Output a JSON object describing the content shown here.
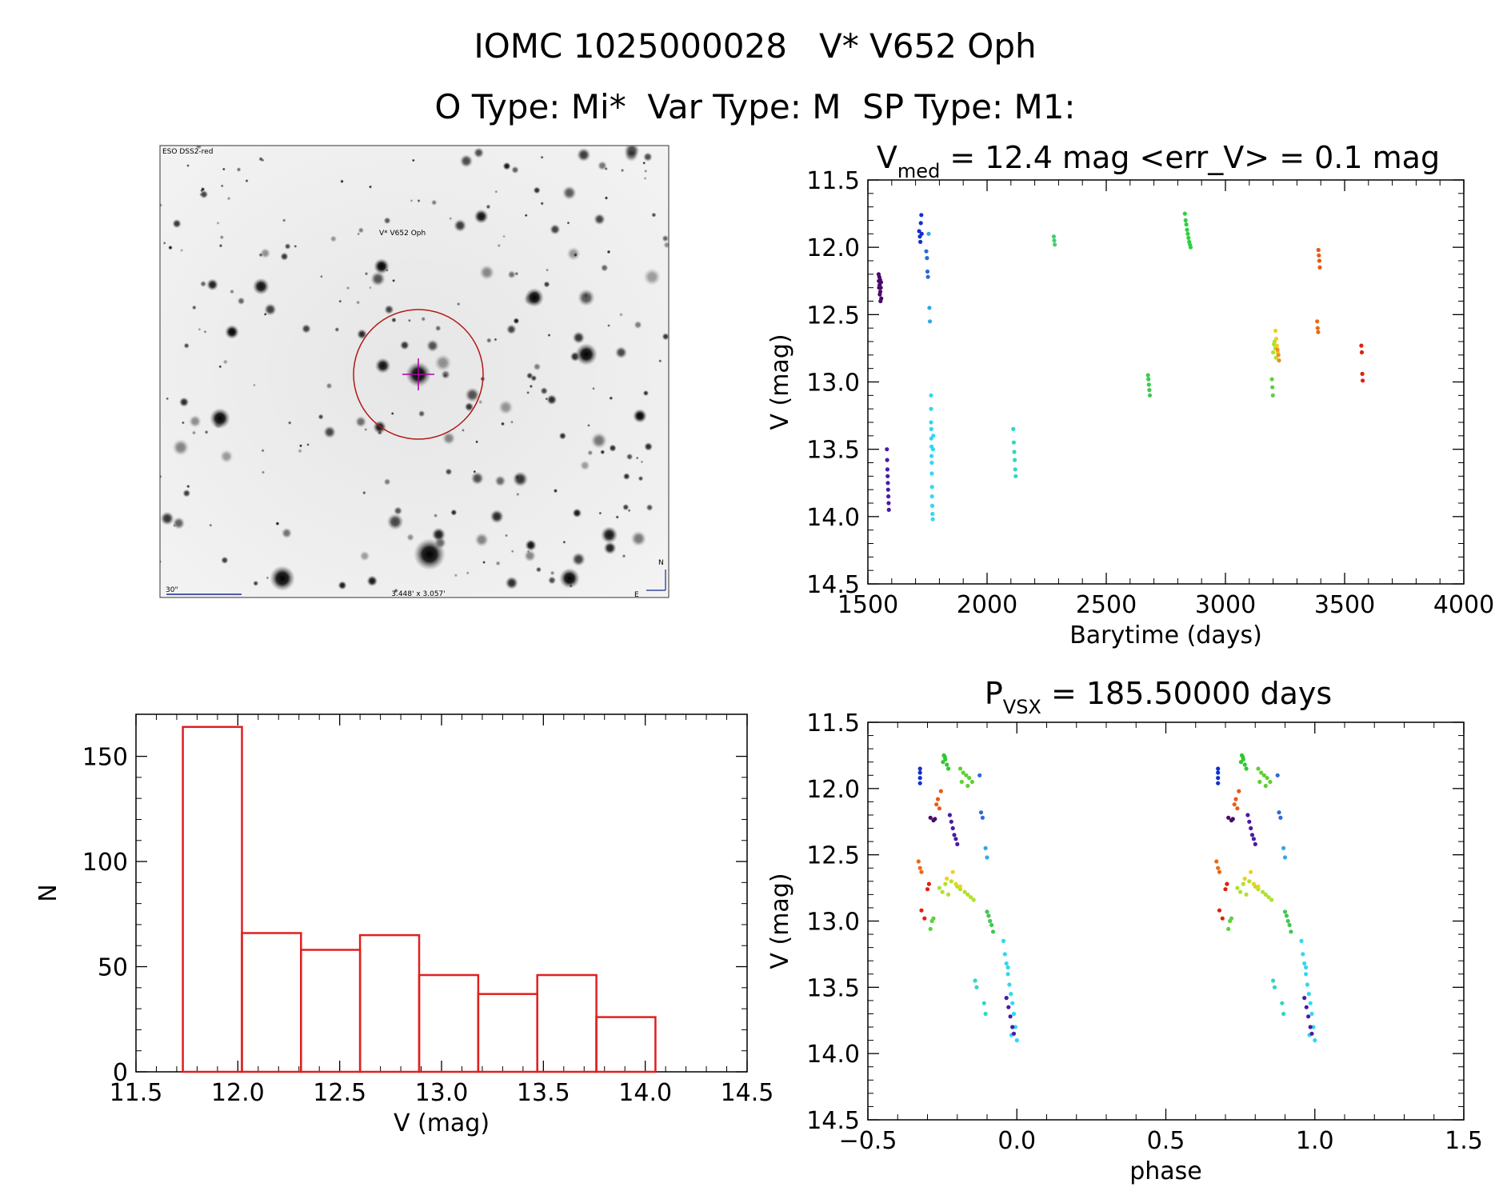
{
  "header": {
    "title_line1": "IOMC 1025000028   V* V652 Oph",
    "title_line2": "O Type: Mi*  Var Type: M  SP Type: M1:"
  },
  "finder": {
    "survey_label": "ESO DSS2-red",
    "target_label": "V* V652 Oph",
    "scale_label": "30\"",
    "fov_label": "3.448' x 3.057'",
    "north_label": "N",
    "east_label": "E",
    "colors": {
      "circle": "#b01818",
      "crosshair": "#b000b0",
      "label": "#1a2a8a",
      "target_label": "#a01010"
    }
  },
  "chart_data": [
    {
      "type": "scatter",
      "id": "lightcurve",
      "title_main": "V",
      "title_sub": "med",
      "title_rest": " = 12.4 mag <err_V> = 0.1 mag",
      "xlabel": "Barytime (days)",
      "ylabel": "V (mag)",
      "xlim": [
        1500,
        4000
      ],
      "ylim": [
        14.5,
        11.5
      ],
      "y_inverted": true,
      "xticks": [
        "1500",
        "2000",
        "2500",
        "3000",
        "3500",
        "4000"
      ],
      "yticks": [
        "11.5",
        "12.0",
        "12.5",
        "13.0",
        "13.5",
        "14.0",
        "14.5"
      ],
      "groups": [
        {
          "color": "#4a0a6a",
          "x": [
            1545,
            1546,
            1547,
            1548,
            1549,
            1550,
            1551,
            1552,
            1553,
            1554,
            1555,
            1556
          ],
          "y": [
            12.2,
            12.25,
            12.3,
            12.22,
            12.28,
            12.35,
            12.24,
            12.33,
            12.4,
            12.3,
            12.26,
            12.38
          ]
        },
        {
          "color": "#4a1aa8",
          "x": [
            1580,
            1581,
            1582,
            1583,
            1584,
            1585,
            1586,
            1587,
            1588
          ],
          "y": [
            13.5,
            13.58,
            13.65,
            13.7,
            13.75,
            13.8,
            13.85,
            13.9,
            13.95
          ]
        },
        {
          "color": "#1030d0",
          "x": [
            1715,
            1718,
            1720,
            1722,
            1724,
            1726
          ],
          "y": [
            11.88,
            11.92,
            11.96,
            11.82,
            11.76,
            11.9
          ]
        },
        {
          "color": "#2a6ae0",
          "x": [
            1745,
            1748,
            1750,
            1752
          ],
          "y": [
            12.03,
            12.08,
            12.18,
            12.22
          ]
        },
        {
          "color": "#30a8e8",
          "x": [
            1755,
            1758,
            1760
          ],
          "y": [
            11.9,
            12.45,
            12.55
          ]
        },
        {
          "color": "#30d8f0",
          "x": [
            1765,
            1765,
            1765,
            1766,
            1766,
            1767,
            1767,
            1768,
            1768,
            1769,
            1769,
            1770,
            1771,
            1772,
            1773,
            1774
          ],
          "y": [
            13.1,
            13.2,
            13.3,
            13.35,
            13.42,
            13.48,
            13.55,
            13.6,
            13.68,
            13.78,
            13.85,
            13.92,
            13.98,
            14.02,
            13.5,
            13.4
          ]
        },
        {
          "color": "#30d8c0",
          "x": [
            2110,
            2112,
            2114,
            2116,
            2118,
            2120
          ],
          "y": [
            13.35,
            13.45,
            13.52,
            13.58,
            13.65,
            13.7
          ]
        },
        {
          "color": "#40d070",
          "x": [
            2280,
            2282,
            2284
          ],
          "y": [
            11.92,
            11.95,
            11.98
          ]
        },
        {
          "color": "#40c850",
          "x": [
            2675,
            2677,
            2679,
            2681,
            2683
          ],
          "y": [
            12.95,
            12.98,
            13.02,
            13.06,
            13.1
          ]
        },
        {
          "color": "#30d040",
          "x": [
            2830,
            2833,
            2836,
            2839,
            2842,
            2845,
            2848,
            2851,
            2854
          ],
          "y": [
            11.75,
            11.8,
            11.83,
            11.87,
            11.9,
            11.93,
            11.96,
            11.98,
            12.0
          ]
        },
        {
          "color": "#60d040",
          "x": [
            3195,
            3197,
            3199
          ],
          "y": [
            12.98,
            13.04,
            13.1
          ]
        },
        {
          "color": "#b0e030",
          "x": [
            3200,
            3203,
            3206,
            3209,
            3212
          ],
          "y": [
            12.78,
            12.72,
            12.7,
            12.75,
            12.82
          ]
        },
        {
          "color": "#f0d020",
          "x": [
            3210,
            3213,
            3216,
            3219
          ],
          "y": [
            12.62,
            12.68,
            12.73,
            12.78
          ]
        },
        {
          "color": "#f09020",
          "x": [
            3218,
            3222,
            3225
          ],
          "y": [
            12.76,
            12.8,
            12.84
          ]
        },
        {
          "color": "#e86a18",
          "x": [
            3385,
            3387,
            3389
          ],
          "y": [
            12.55,
            12.6,
            12.63
          ]
        },
        {
          "color": "#e85a18",
          "x": [
            3390,
            3392,
            3394,
            3396
          ],
          "y": [
            12.02,
            12.06,
            12.1,
            12.15
          ]
        },
        {
          "color": "#e02010",
          "x": [
            3570,
            3572,
            3574,
            3576
          ],
          "y": [
            12.73,
            12.78,
            12.94,
            12.99
          ]
        }
      ]
    },
    {
      "type": "bar",
      "id": "histogram",
      "xlabel": "V (mag)",
      "ylabel": "N",
      "xlim": [
        11.5,
        14.5
      ],
      "ylim": [
        0,
        170
      ],
      "xticks": [
        "11.5",
        "12.0",
        "12.5",
        "13.0",
        "13.5",
        "14.0",
        "14.5"
      ],
      "yticks": [
        "0",
        "50",
        "100",
        "150"
      ],
      "bar_color": "#e02020",
      "bin_edges": [
        11.73,
        12.02,
        12.31,
        12.6,
        12.89,
        13.18,
        13.47,
        13.76,
        14.05
      ],
      "values": [
        164,
        66,
        58,
        65,
        46,
        37,
        46,
        26
      ]
    },
    {
      "type": "scatter",
      "id": "phased",
      "title_main": "P",
      "title_sub": "VSX",
      "title_rest": " = 185.50000 days",
      "xlabel": "phase",
      "ylabel": "V (mag)",
      "xlim": [
        -0.5,
        1.5
      ],
      "ylim": [
        14.5,
        11.5
      ],
      "y_inverted": true,
      "xticks": [
        "−0.5",
        "0.0",
        "0.5",
        "1.0",
        "1.5"
      ],
      "yticks": [
        "11.5",
        "12.0",
        "12.5",
        "13.0",
        "13.5",
        "14.0",
        "14.5"
      ],
      "repeat_offset": 1.0,
      "groups": [
        {
          "color": "#1030d0",
          "x": [
            -0.325,
            -0.325,
            -0.325,
            -0.325
          ],
          "y": [
            11.85,
            11.88,
            11.92,
            11.96
          ]
        },
        {
          "color": "#30c830",
          "x": [
            -0.245,
            -0.24,
            -0.235,
            -0.23,
            -0.248,
            -0.242
          ],
          "y": [
            11.75,
            11.78,
            11.82,
            11.85,
            11.8,
            11.76
          ]
        },
        {
          "color": "#60d030",
          "x": [
            -0.19,
            -0.18,
            -0.17,
            -0.16,
            -0.15,
            -0.185,
            -0.165
          ],
          "y": [
            11.85,
            11.88,
            11.9,
            11.92,
            11.95,
            11.95,
            11.98
          ]
        },
        {
          "color": "#e85a18",
          "x": [
            -0.27,
            -0.265,
            -0.26,
            -0.255
          ],
          "y": [
            12.12,
            12.08,
            12.15,
            12.02
          ]
        },
        {
          "color": "#4a0a6a",
          "x": [
            -0.29,
            -0.28,
            -0.275
          ],
          "y": [
            12.22,
            12.24,
            12.23
          ]
        },
        {
          "color": "#4a1aa8",
          "x": [
            -0.225,
            -0.22,
            -0.215,
            -0.21,
            -0.205,
            -0.2
          ],
          "y": [
            12.2,
            12.25,
            12.3,
            12.35,
            12.38,
            12.42
          ]
        },
        {
          "color": "#2a6ae0",
          "x": [
            -0.125,
            -0.12,
            -0.115
          ],
          "y": [
            11.9,
            12.18,
            12.22
          ]
        },
        {
          "color": "#30a8e8",
          "x": [
            -0.105,
            -0.1
          ],
          "y": [
            12.45,
            12.52
          ]
        },
        {
          "color": "#e86a18",
          "x": [
            -0.33,
            -0.325,
            -0.32
          ],
          "y": [
            12.55,
            12.6,
            12.63
          ]
        },
        {
          "color": "#e02010",
          "x": [
            -0.32,
            -0.3,
            -0.295,
            -0.31
          ],
          "y": [
            12.92,
            12.76,
            12.72,
            12.98
          ]
        },
        {
          "color": "#60d040",
          "x": [
            -0.285,
            -0.28,
            -0.29
          ],
          "y": [
            13.0,
            12.98,
            13.06
          ]
        },
        {
          "color": "#b0e030",
          "x": [
            -0.26,
            -0.25,
            -0.24,
            -0.23,
            -0.22,
            -0.2,
            -0.19,
            -0.175,
            -0.165,
            -0.155,
            -0.145
          ],
          "y": [
            12.75,
            12.78,
            12.72,
            12.8,
            12.7,
            12.74,
            12.76,
            12.78,
            12.8,
            12.82,
            12.84
          ]
        },
        {
          "color": "#f0d020",
          "x": [
            -0.235,
            -0.215,
            -0.205,
            -0.19
          ],
          "y": [
            12.68,
            12.63,
            12.72,
            12.74
          ]
        },
        {
          "color": "#40c850",
          "x": [
            -0.1,
            -0.095,
            -0.09,
            -0.085,
            -0.08
          ],
          "y": [
            12.93,
            12.96,
            13.0,
            13.03,
            13.08
          ]
        },
        {
          "color": "#30d8c0",
          "x": [
            -0.14,
            -0.135,
            -0.11,
            -0.105
          ],
          "y": [
            13.45,
            13.5,
            13.62,
            13.7
          ]
        },
        {
          "color": "#30d8f0",
          "x": [
            -0.045,
            -0.04,
            -0.035,
            -0.03,
            -0.025,
            -0.02,
            -0.015,
            -0.01,
            -0.005,
            0.0,
            -0.03,
            -0.018
          ],
          "y": [
            13.15,
            13.25,
            13.32,
            13.4,
            13.48,
            13.55,
            13.62,
            13.7,
            13.8,
            13.9,
            13.35,
            13.86
          ]
        },
        {
          "color": "#4a1aa8",
          "x": [
            -0.035,
            -0.028,
            -0.022,
            -0.015,
            -0.01
          ],
          "y": [
            13.58,
            13.65,
            13.72,
            13.8,
            13.85
          ]
        }
      ]
    }
  ]
}
